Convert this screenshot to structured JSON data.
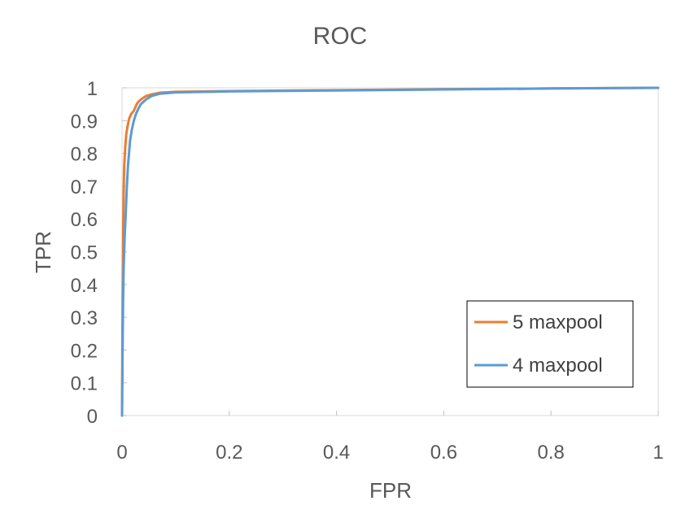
{
  "chart_data": {
    "type": "line",
    "title": "ROC",
    "xlabel": "FPR",
    "ylabel": "TPR",
    "xlim": [
      0,
      1
    ],
    "ylim": [
      0,
      1
    ],
    "xticks": [
      "0",
      "0.2",
      "0.4",
      "0.6",
      "0.8",
      "1"
    ],
    "yticks": [
      "0",
      "0.1",
      "0.2",
      "0.3",
      "0.4",
      "0.5",
      "0.6",
      "0.7",
      "0.8",
      "0.9",
      "1"
    ],
    "grid": false,
    "legend_position": "bottom-right",
    "series": [
      {
        "name": "5 maxpool",
        "color": "#ED7D31",
        "points": [
          [
            0,
            0
          ],
          [
            0.001,
            0.35
          ],
          [
            0.002,
            0.55
          ],
          [
            0.003,
            0.68
          ],
          [
            0.004,
            0.76
          ],
          [
            0.006,
            0.82
          ],
          [
            0.008,
            0.86
          ],
          [
            0.01,
            0.88
          ],
          [
            0.013,
            0.905
          ],
          [
            0.017,
            0.92
          ],
          [
            0.022,
            0.93
          ],
          [
            0.026,
            0.945
          ],
          [
            0.028,
            0.952
          ],
          [
            0.032,
            0.96
          ],
          [
            0.038,
            0.968
          ],
          [
            0.045,
            0.975
          ],
          [
            0.055,
            0.98
          ],
          [
            0.07,
            0.985
          ],
          [
            0.1,
            0.988
          ],
          [
            0.2,
            0.99
          ],
          [
            0.4,
            0.993
          ],
          [
            0.6,
            0.996
          ],
          [
            0.8,
            0.998
          ],
          [
            1.0,
            1.0
          ]
        ]
      },
      {
        "name": "4 maxpool",
        "color": "#5B9BD5",
        "points": [
          [
            0,
            0
          ],
          [
            0.001,
            0.2
          ],
          [
            0.002,
            0.35
          ],
          [
            0.003,
            0.45
          ],
          [
            0.005,
            0.55
          ],
          [
            0.007,
            0.62
          ],
          [
            0.009,
            0.7
          ],
          [
            0.011,
            0.76
          ],
          [
            0.013,
            0.8
          ],
          [
            0.015,
            0.84
          ],
          [
            0.018,
            0.87
          ],
          [
            0.022,
            0.9
          ],
          [
            0.026,
            0.92
          ],
          [
            0.03,
            0.935
          ],
          [
            0.035,
            0.95
          ],
          [
            0.045,
            0.965
          ],
          [
            0.055,
            0.975
          ],
          [
            0.07,
            0.982
          ],
          [
            0.1,
            0.986
          ],
          [
            0.2,
            0.989
          ],
          [
            0.4,
            0.992
          ],
          [
            0.6,
            0.995
          ],
          [
            0.8,
            0.998
          ],
          [
            1.0,
            1.0
          ]
        ]
      }
    ]
  }
}
